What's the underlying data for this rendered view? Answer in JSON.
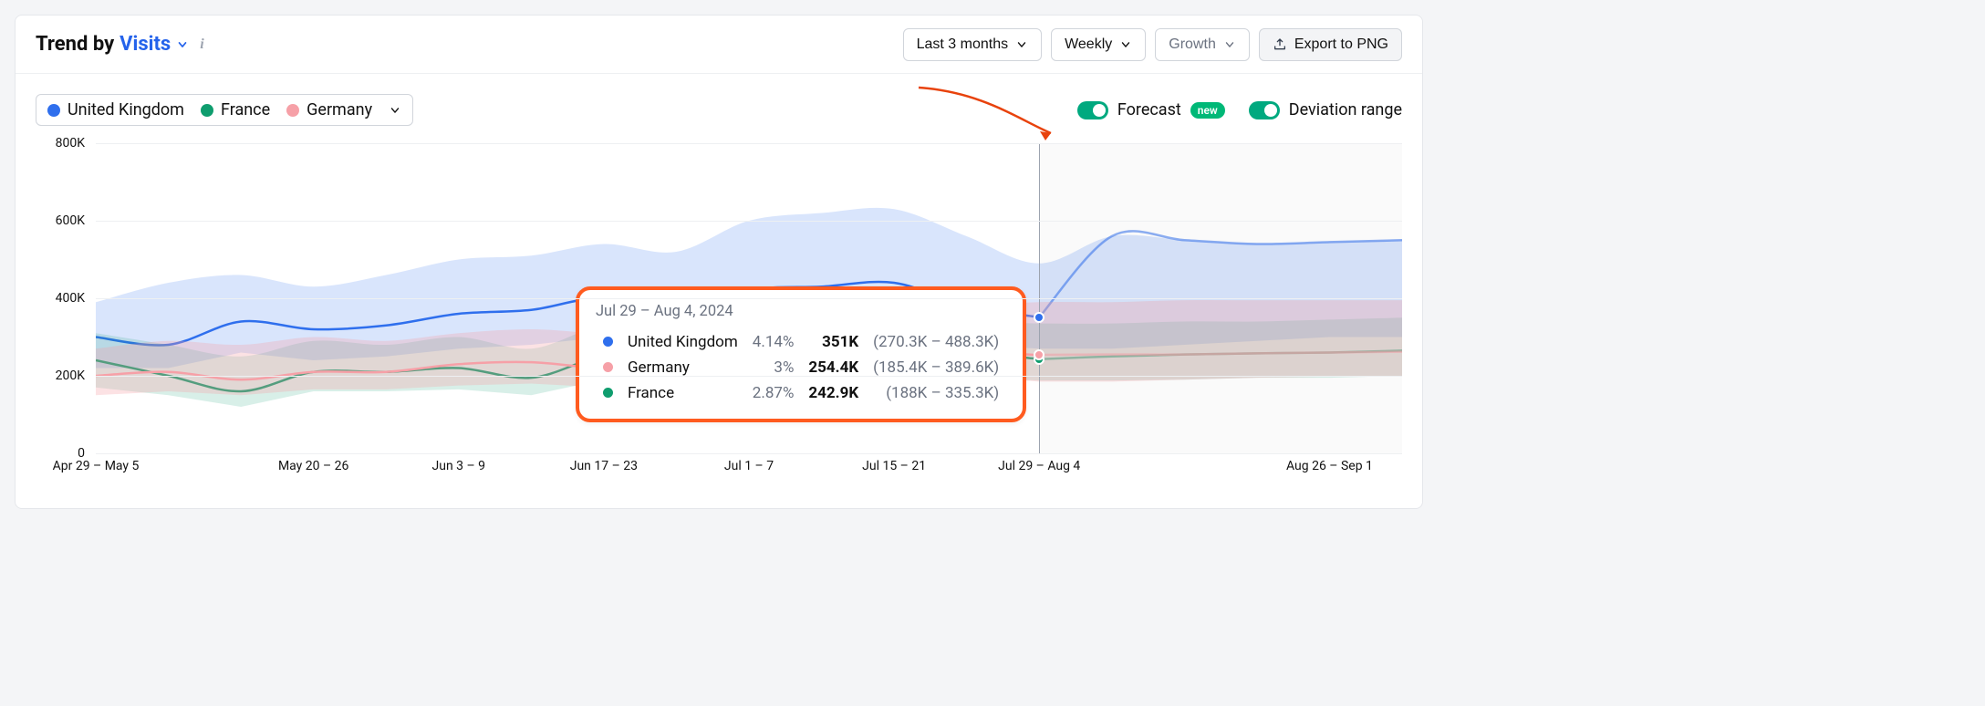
{
  "header": {
    "title_prefix": "Trend by",
    "metric_label": "Visits",
    "controls": {
      "range": "Last 3 months",
      "granularity": "Weekly",
      "mode": "Growth",
      "export": "Export to PNG"
    }
  },
  "toggles": {
    "forecast": {
      "label": "Forecast",
      "badge": "new",
      "on": true
    },
    "deviation": {
      "label": "Deviation range",
      "on": true
    }
  },
  "legend": {
    "items": [
      {
        "label": "United Kingdom",
        "color": "#2f6fed"
      },
      {
        "label": "France",
        "color": "#0f9d6e"
      },
      {
        "label": "Germany",
        "color": "#f6a0a7"
      }
    ]
  },
  "tooltip": {
    "date": "Jul 29 – Aug 4, 2024",
    "rows": [
      {
        "name": "United Kingdom",
        "color": "#2f6fed",
        "pct": "4.14%",
        "value": "351K",
        "range": "(270.3K – 488.3K)"
      },
      {
        "name": "Germany",
        "color": "#f6a0a7",
        "pct": "3%",
        "value": "254.4K",
        "range": "(185.4K – 389.6K)"
      },
      {
        "name": "France",
        "color": "#0f9d6e",
        "pct": "2.87%",
        "value": "242.9K",
        "range": "(188K – 335.3K)"
      }
    ]
  },
  "chart": {
    "type": "line-area",
    "background": "#ffffff",
    "grid_color": "#eef0f2",
    "axis_fontsize": 14,
    "ylim": [
      0,
      800
    ],
    "yticks": [
      0,
      200,
      400,
      600,
      800
    ],
    "yunit": "K",
    "ylabels": [
      "0",
      "200K",
      "400K",
      "600K",
      "800K"
    ],
    "xcount": 19,
    "xticks": [
      {
        "i": 0,
        "label": "Apr 29 – May 5"
      },
      {
        "i": 3,
        "label": "May 20 – 26"
      },
      {
        "i": 5,
        "label": "Jun 3 – 9"
      },
      {
        "i": 7,
        "label": "Jun 17 – 23"
      },
      {
        "i": 9,
        "label": "Jul 1 – 7"
      },
      {
        "i": 11,
        "label": "Jul 15 – 21"
      },
      {
        "i": 13,
        "label": "Jul 29 – Aug 4"
      },
      {
        "i": 17,
        "label": "Aug 26 – Sep 1"
      }
    ],
    "hover_index": 13,
    "forecast_start_index": 13,
    "series": [
      {
        "name": "United Kingdom",
        "color": "#2f6fed",
        "band_opacity": 0.18,
        "line": [
          300,
          280,
          340,
          320,
          330,
          360,
          370,
          400,
          350,
          420,
          430,
          440,
          380,
          351,
          560,
          550,
          540,
          545,
          550
        ],
        "lo": [
          220,
          220,
          260,
          240,
          250,
          270,
          280,
          300,
          280,
          300,
          300,
          300,
          280,
          270,
          270,
          280,
          290,
          300,
          300
        ],
        "hi": [
          390,
          440,
          460,
          430,
          460,
          500,
          510,
          540,
          520,
          600,
          620,
          630,
          560,
          490,
          560,
          550,
          540,
          545,
          550
        ]
      },
      {
        "name": "France",
        "color": "#0f9d6e",
        "band_opacity": 0.16,
        "line": [
          240,
          200,
          160,
          210,
          210,
          220,
          195,
          250,
          245,
          255,
          250,
          260,
          260,
          243,
          250,
          255,
          258,
          260,
          265
        ],
        "lo": [
          170,
          150,
          120,
          160,
          160,
          165,
          150,
          190,
          190,
          195,
          195,
          200,
          195,
          188,
          188,
          190,
          195,
          195,
          200
        ],
        "hi": [
          310,
          280,
          250,
          290,
          280,
          300,
          270,
          330,
          320,
          330,
          330,
          340,
          340,
          335,
          335,
          340,
          340,
          345,
          350
        ]
      },
      {
        "name": "Germany",
        "color": "#f6a0a7",
        "band_opacity": 0.3,
        "line": [
          200,
          210,
          190,
          210,
          210,
          230,
          235,
          220,
          230,
          235,
          250,
          255,
          260,
          254,
          255,
          255,
          258,
          260,
          262
        ],
        "lo": [
          150,
          160,
          150,
          165,
          165,
          175,
          180,
          170,
          180,
          180,
          195,
          200,
          200,
          185,
          185,
          190,
          195,
          198,
          200
        ],
        "hi": [
          270,
          290,
          280,
          300,
          290,
          310,
          320,
          310,
          320,
          330,
          350,
          360,
          380,
          390,
          390,
          395,
          395,
          395,
          395
        ]
      }
    ]
  },
  "style": {
    "tooltip_border": "#ff5b1f",
    "arrow_color": "#e8420c"
  }
}
